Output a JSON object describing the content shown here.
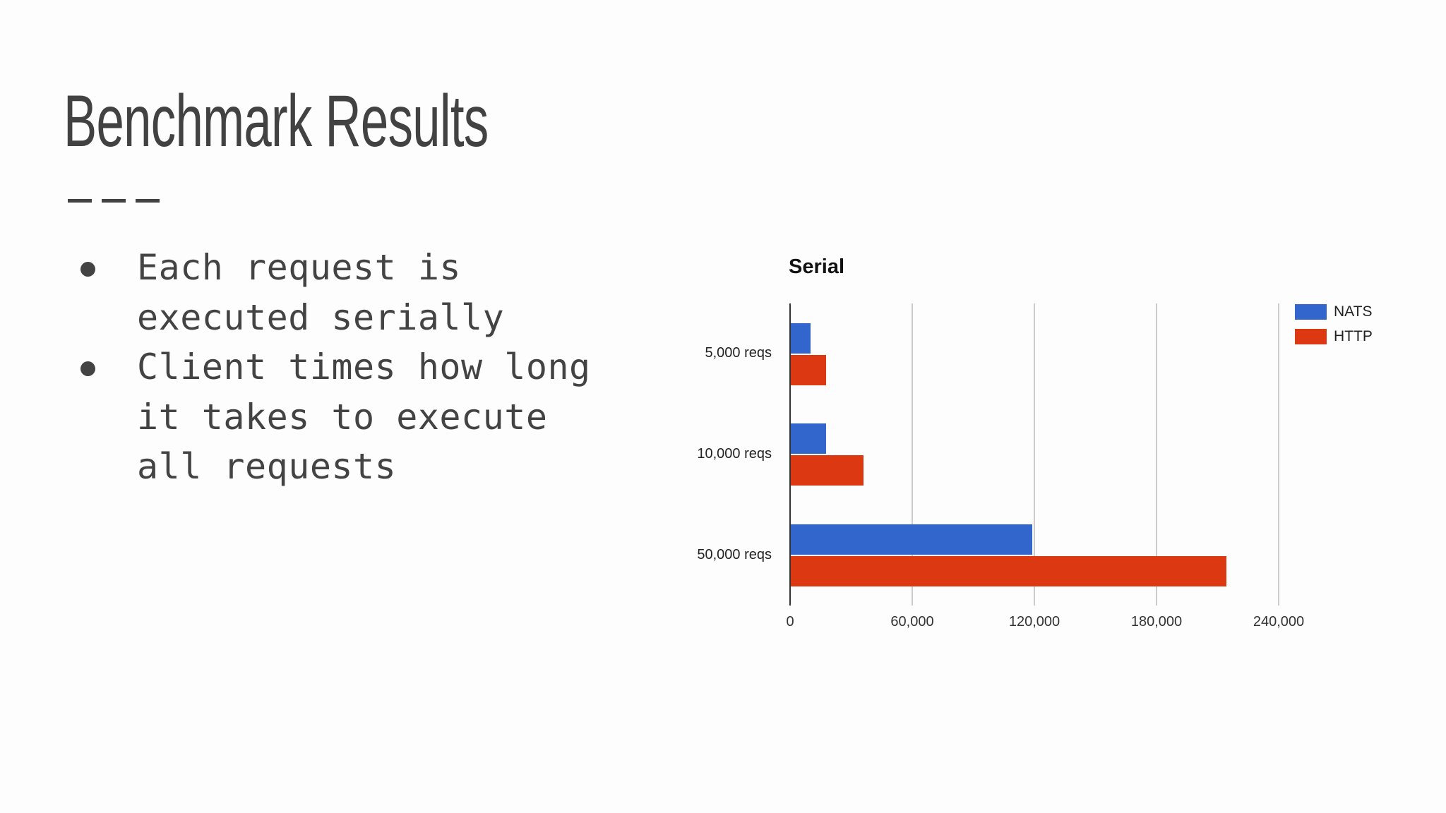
{
  "slide": {
    "title": "Benchmark Results",
    "bullets": [
      {
        "lines": [
          "Each request is",
          "executed serially"
        ]
      },
      {
        "lines": [
          "Client times how long",
          "it takes to execute",
          "all requests"
        ]
      }
    ]
  },
  "colors": {
    "text": "#434343",
    "nats": "#3366cc",
    "http": "#dc3912",
    "grid": "#cccccc"
  },
  "chart_data": {
    "type": "bar",
    "orientation": "horizontal",
    "title": "Serial",
    "categories": [
      "5,000 reqs",
      "10,000 reqs",
      "50,000 reqs"
    ],
    "series": [
      {
        "name": "NATS",
        "color": "#3366cc",
        "values": [
          10000,
          17700,
          118800
        ]
      },
      {
        "name": "HTTP",
        "color": "#dc3912",
        "values": [
          17700,
          36000,
          214300
        ]
      }
    ],
    "xlabel": "",
    "ylabel": "",
    "xlim": [
      0,
      240000
    ],
    "xticks": [
      "0",
      "60,000",
      "120,000",
      "180,000",
      "240,000"
    ],
    "grid": true,
    "legend_position": "right"
  }
}
